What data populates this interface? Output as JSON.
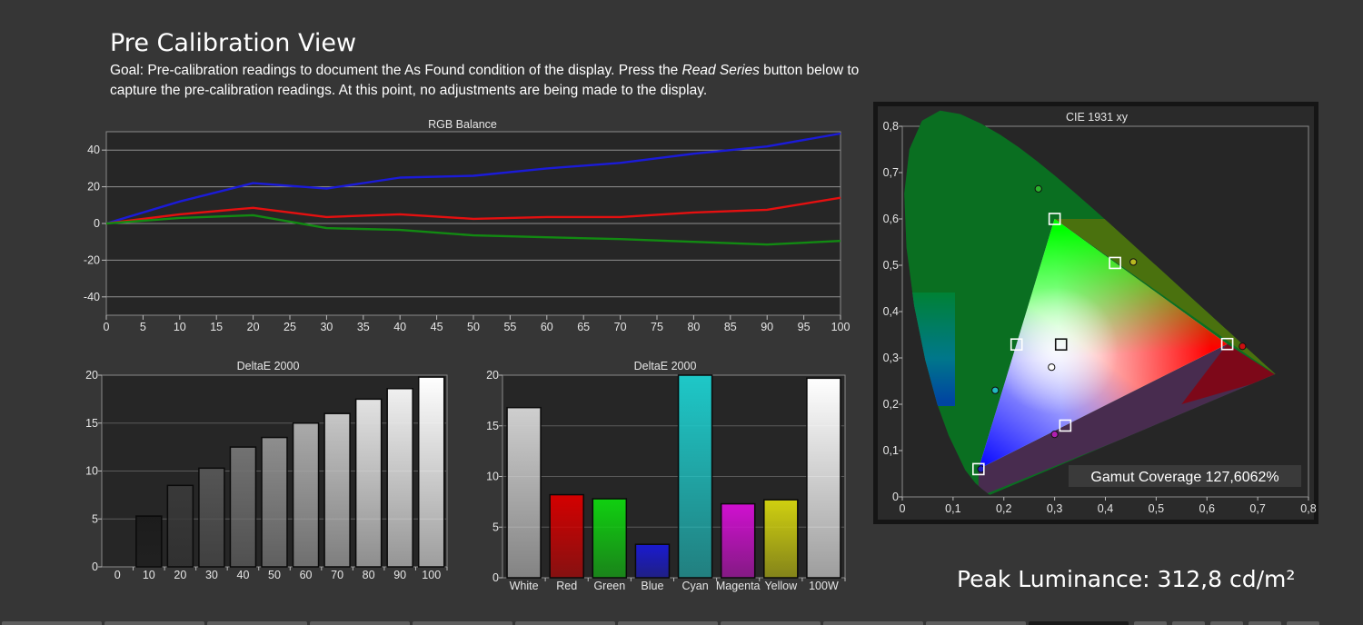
{
  "header": {
    "title": "Pre Calibration View",
    "goal_prefix": "Goal: Pre-calibration readings to document the As Found condition of the display. Press the ",
    "goal_button": "Read Series",
    "goal_suffix": " button below to capture the pre-calibration readings. At this point, no adjustments are being made to the display."
  },
  "peak_luminance": "Peak Luminance: 312,8 cd/m²",
  "gamut_coverage": "Gamut Coverage 127,6062%",
  "colors": {
    "red": "#e41010",
    "green": "#128a12",
    "blue": "#1b1bd8",
    "panel": "#262626",
    "page": "#363636"
  },
  "chart_data": [
    {
      "id": "rgb",
      "type": "line",
      "title": "RGB Balance",
      "x": [
        0,
        5,
        10,
        15,
        20,
        25,
        30,
        35,
        40,
        45,
        50,
        55,
        60,
        65,
        70,
        75,
        80,
        85,
        90,
        95,
        100
      ],
      "x_ticks": [
        "0",
        "5",
        "10",
        "15",
        "20",
        "25",
        "30",
        "35",
        "40",
        "45",
        "50",
        "55",
        "60",
        "65",
        "70",
        "75",
        "80",
        "85",
        "90",
        "95",
        "100"
      ],
      "y_ticks": [
        "40",
        "20",
        "0",
        "-20",
        "-40"
      ],
      "ylim": [
        -50,
        50
      ],
      "series": [
        {
          "color": "#1b1bd8",
          "values": [
            0,
            null,
            12,
            null,
            22,
            null,
            19,
            null,
            25,
            null,
            26,
            null,
            30,
            null,
            33,
            null,
            38,
            null,
            42,
            null,
            49
          ]
        },
        {
          "color": "#e41010",
          "values": [
            0,
            null,
            5,
            null,
            8.5,
            null,
            3.5,
            null,
            5,
            null,
            2.5,
            null,
            3.5,
            null,
            3.5,
            null,
            6,
            null,
            7.5,
            null,
            14
          ]
        },
        {
          "color": "#128a12",
          "values": [
            0,
            null,
            3,
            null,
            4.5,
            null,
            -2.5,
            null,
            -3.5,
            null,
            -6.5,
            null,
            -7.5,
            null,
            -8.5,
            null,
            -10,
            null,
            -11.5,
            null,
            -9.5
          ]
        }
      ]
    },
    {
      "id": "grayscale",
      "type": "bar",
      "title": "DeltaE 2000",
      "categories": [
        "0",
        "10",
        "20",
        "30",
        "40",
        "50",
        "60",
        "70",
        "80",
        "90",
        "100"
      ],
      "values": [
        0,
        5.3,
        8.5,
        10.3,
        12.5,
        13.5,
        15,
        16,
        17.5,
        18.6,
        19.8
      ],
      "colors": [
        "#000000",
        "#1c1c1c",
        "#393939",
        "#555555",
        "#727272",
        "#8e8e8e",
        "#aaaaaa",
        "#c6c6c6",
        "#e2e2e2",
        "#f0f0f0",
        "#ffffff"
      ],
      "y_ticks": [
        "20",
        "15",
        "10",
        "5",
        "0"
      ],
      "ylim": [
        0,
        20
      ]
    },
    {
      "id": "colorchecker",
      "type": "bar",
      "title": "DeltaE 2000",
      "categories": [
        "White",
        "Red",
        "Green",
        "Blue",
        "Cyan",
        "Magenta",
        "Yellow",
        "100W"
      ],
      "values": [
        16.8,
        8.2,
        7.8,
        3.3,
        20,
        7.3,
        7.7,
        19.7
      ],
      "colors": [
        "#cfcfcf",
        "#d40000",
        "#10d010",
        "#1a1ad0",
        "#1ec8c8",
        "#d010d0",
        "#d0d010",
        "#ffffff"
      ],
      "y_ticks": [
        "20",
        "15",
        "10",
        "5",
        "0"
      ],
      "ylim": [
        0,
        20
      ]
    },
    {
      "id": "cie",
      "type": "scatter",
      "title": "CIE 1931 xy",
      "x_ticks": [
        "0",
        "0,1",
        "0,2",
        "0,3",
        "0,4",
        "0,5",
        "0,6",
        "0,7",
        "0,8"
      ],
      "y_ticks": [
        "0,8",
        "0,7",
        "0,6",
        "0,5",
        "0,4",
        "0,3",
        "0,2",
        "0,1",
        "0"
      ],
      "xlim": [
        0,
        0.8
      ],
      "ylim": [
        0,
        0.8
      ],
      "targets": [
        {
          "x": 0.64,
          "y": 0.33
        },
        {
          "x": 0.3,
          "y": 0.6
        },
        {
          "x": 0.15,
          "y": 0.06
        },
        {
          "x": 0.225,
          "y": 0.329
        },
        {
          "x": 0.321,
          "y": 0.154
        },
        {
          "x": 0.419,
          "y": 0.505
        },
        {
          "x": 0.3127,
          "y": 0.329
        }
      ],
      "measured": [
        {
          "x": 0.67,
          "y": 0.325,
          "color": "#cc1010"
        },
        {
          "x": 0.268,
          "y": 0.665,
          "color": "#2cb52c"
        },
        {
          "x": 0.155,
          "y": 0.06,
          "color": "#2020c0"
        },
        {
          "x": 0.183,
          "y": 0.23,
          "color": "#20b8c0"
        },
        {
          "x": 0.3,
          "y": 0.135,
          "color": "#b020b0"
        },
        {
          "x": 0.455,
          "y": 0.507,
          "color": "#b8b820"
        },
        {
          "x": 0.294,
          "y": 0.28,
          "color": "#ffffff"
        }
      ]
    }
  ]
}
